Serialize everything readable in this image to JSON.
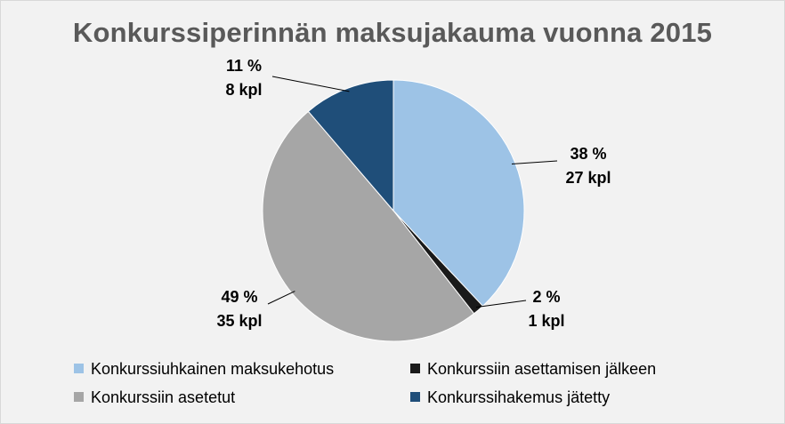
{
  "chart_data": {
    "type": "pie",
    "title": "Konkurssiperinnän maksujakauma vuonna 2015",
    "slices": [
      {
        "name": "Konkurssiuhkainen maksukehotus",
        "value": 27,
        "percent_label": "38 %",
        "count_label": "27 kpl",
        "color": "#9dc3e6"
      },
      {
        "name": "Konkurssiin asettamisen jälkeen",
        "value": 1,
        "percent_label": "2 %",
        "count_label": "1 kpl",
        "color": "#1a1a1a"
      },
      {
        "name": "Konkurssiin asetetut",
        "value": 35,
        "percent_label": "49 %",
        "count_label": "35 kpl",
        "color": "#a6a6a6"
      },
      {
        "name": "Konkurssihakemus jätetty",
        "value": 8,
        "percent_label": "11 %",
        "count_label": "8 kpl",
        "color": "#1f4e79"
      }
    ],
    "legend_position": "bottom",
    "background": "#f2f2f2"
  }
}
